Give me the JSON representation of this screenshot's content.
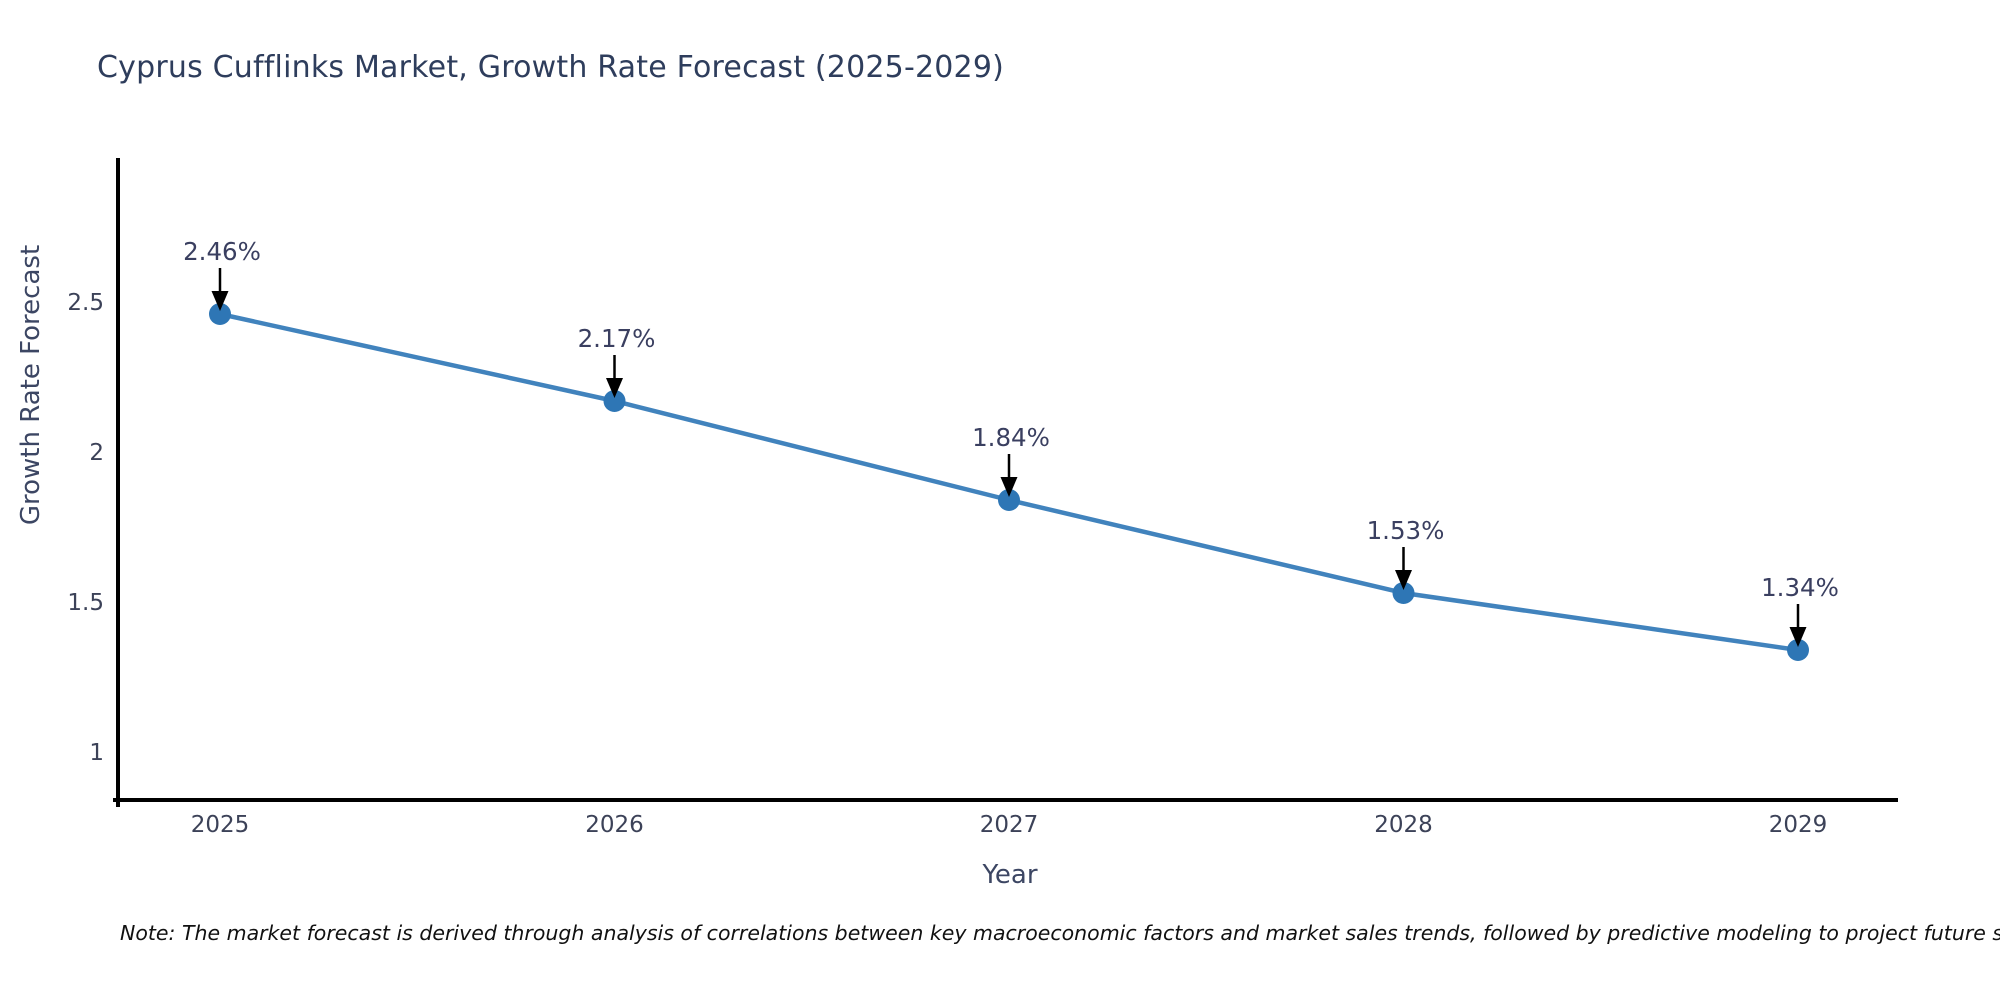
{
  "figure": {
    "title": "Cyprus Cufflinks Market, Growth Rate Forecast (2025-2029)",
    "note": "Note: The market forecast is derived through analysis of correlations between key macroeconomic factors and market sales trends, followed by predictive modeling to project future sales"
  },
  "chart_data": {
    "type": "line",
    "title": "Cyprus Cufflinks Market, Growth Rate Forecast (2025-2029)",
    "xlabel": "Year",
    "ylabel": "Growth Rate Forecast",
    "categories": [
      "2025",
      "2026",
      "2027",
      "2028",
      "2029"
    ],
    "series": [
      {
        "name": "Growth Rate Forecast",
        "values": [
          2.46,
          2.17,
          1.84,
          1.53,
          1.34
        ]
      }
    ],
    "point_labels": [
      "2.46%",
      "2.17%",
      "1.84%",
      "1.53%",
      "1.34%"
    ],
    "yticks": [
      2.5,
      2.0,
      1.5,
      1.0
    ],
    "ytick_labels": [
      "2.5",
      "2",
      "1.5",
      "1"
    ],
    "ylim": [
      0.84,
      2.97
    ],
    "grid": false,
    "legend_position": "none",
    "annotation_style": "value label above each point with downward black arrow",
    "colors": {
      "line": "#4183bd",
      "marker": "#2e76b5",
      "axis": "#000000",
      "title_text": "#2e3d5c",
      "tick_text": "#3c4258",
      "annotation_text": "#3a3f60",
      "arrow": "#000000",
      "note_text": "#111111"
    }
  }
}
